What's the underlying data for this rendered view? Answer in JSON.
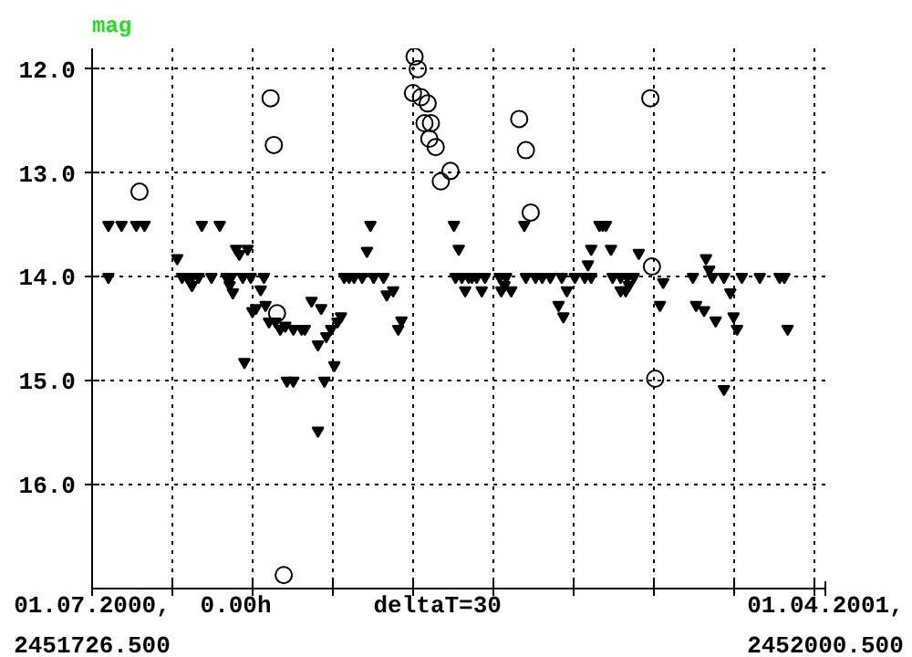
{
  "chart_data": {
    "type": "scatter",
    "ylabel": "mag",
    "annotations": [
      "01.07.2000,",
      "0.00h",
      "deltaT=30",
      "01.04.2001,"
    ],
    "xlim": [
      2451726.5,
      2452000.5
    ],
    "xticks": [
      {
        "value": 2451726.5,
        "label": "2451726.500"
      },
      {
        "value": 2451756.5,
        "label": null
      },
      {
        "value": 2451786.5,
        "label": null
      },
      {
        "value": 2451816.5,
        "label": null
      },
      {
        "value": 2451846.5,
        "label": null
      },
      {
        "value": 2451876.5,
        "label": null
      },
      {
        "value": 2451906.5,
        "label": null
      },
      {
        "value": 2451936.5,
        "label": null
      },
      {
        "value": 2451966.5,
        "label": null
      },
      {
        "value": 2451996.5,
        "label": null
      },
      {
        "value": 2452000.5,
        "label": "2452000.500"
      }
    ],
    "ylim": [
      17.0,
      11.8
    ],
    "yticks": [
      {
        "value": 12,
        "label": "12.0"
      },
      {
        "value": 13,
        "label": "13.0"
      },
      {
        "value": 14,
        "label": "14.0"
      },
      {
        "value": 15,
        "label": "15.0"
      },
      {
        "value": 16,
        "label": "16.0"
      }
    ],
    "grid": true,
    "series": [
      {
        "color": "#000000",
        "marker": "circle",
        "x": [
          2451744.2,
          2451793.2,
          2451794.4,
          2451795.6,
          2451798.1,
          2451846.4,
          2451847.0,
          2451848.2,
          2451849.4,
          2451850.7,
          2451851.9,
          2451852.5,
          2451853.1,
          2451854.9,
          2451856.8,
          2451860.4,
          2451886.1,
          2451888.6,
          2451890.4,
          2451935.1,
          2451935.7,
          2451936.9
        ],
        "values": [
          13.18,
          12.28,
          12.73,
          14.35,
          16.87,
          12.23,
          11.88,
          12.0,
          12.27,
          12.52,
          12.33,
          12.67,
          12.52,
          12.75,
          13.08,
          12.98,
          12.48,
          12.78,
          13.38,
          12.28,
          13.9,
          14.98
        ]
      },
      {
        "color": "#000000",
        "marker": "triangle",
        "x": [
          2451732.6,
          2451732.6,
          2451737.5,
          2451743.0,
          2451746.1,
          2451758.3,
          2451760.1,
          2451762.0,
          2451763.8,
          2451763.8,
          2451766.3,
          2451767.5,
          2451771.1,
          2451774.2,
          2451776.7,
          2451777.9,
          2451778.5,
          2451779.1,
          2451780.3,
          2451781.5,
          2451782.8,
          2451783.4,
          2451784.6,
          2451785.8,
          2451786.4,
          2451787.7,
          2451789.5,
          2451790.7,
          2451791.3,
          2451792.6,
          2451795.0,
          2451796.8,
          2451798.7,
          2451799.3,
          2451801.7,
          2451801.7,
          2451804.8,
          2451806.0,
          2451808.5,
          2451810.9,
          2451810.9,
          2451812.1,
          2451813.3,
          2451814.0,
          2451815.8,
          2451817.0,
          2451818.2,
          2451819.5,
          2451820.7,
          2451822.5,
          2451824.4,
          2451827.4,
          2451829.2,
          2451830.5,
          2451831.7,
          2451835.4,
          2451836.6,
          2451839.0,
          2451840.9,
          2451842.1,
          2451861.7,
          2451863.5,
          2451862.3,
          2451864.7,
          2451865.9,
          2451867.2,
          2451868.4,
          2451870.2,
          2451872.1,
          2451873.3,
          2451878.8,
          2451879.4,
          2451880.6,
          2451881.2,
          2451883.1,
          2451888.0,
          2451888.6,
          2451892.2,
          2451894.7,
          2451897.7,
          2451900.8,
          2451902.0,
          2451902.6,
          2451903.9,
          2451906.9,
          2451910.6,
          2451911.8,
          2451913.0,
          2451913.0,
          2451916.1,
          2451917.3,
          2451918.5,
          2451920.4,
          2451921.0,
          2451924.0,
          2451924.0,
          2451925.9,
          2451926.5,
          2451927.1,
          2451928.9,
          2451930.8,
          2451938.7,
          2451939.9,
          2451951.0,
          2451952.2,
          2451955.2,
          2451955.9,
          2451957.1,
          2451958.3,
          2451959.5,
          2451962.6,
          2451962.6,
          2451965.0,
          2451966.2,
          2451967.5,
          2451969.3,
          2451976.0,
          2451983.4,
          2451985.2,
          2451986.4
        ],
        "values": [
          13.5,
          14.0,
          13.5,
          13.5,
          13.5,
          13.82,
          14.0,
          14.0,
          14.0,
          14.08,
          14.0,
          13.5,
          14.0,
          13.5,
          14.0,
          14.08,
          14.0,
          14.15,
          13.73,
          13.78,
          14.0,
          14.82,
          13.73,
          14.0,
          14.33,
          14.3,
          14.12,
          14.0,
          14.27,
          14.43,
          14.43,
          14.5,
          14.47,
          15.0,
          15.0,
          14.5,
          14.5,
          14.5,
          14.23,
          14.65,
          15.48,
          14.3,
          15.0,
          14.57,
          14.5,
          14.85,
          14.43,
          14.38,
          14.0,
          14.0,
          14.0,
          14.0,
          13.75,
          13.5,
          14.0,
          14.0,
          14.17,
          14.13,
          14.5,
          14.42,
          13.5,
          13.73,
          14.0,
          14.0,
          14.13,
          14.0,
          14.0,
          14.0,
          14.13,
          14.0,
          14.0,
          14.13,
          14.08,
          14.0,
          14.13,
          13.5,
          14.0,
          14.0,
          14.0,
          14.0,
          14.27,
          14.0,
          14.38,
          14.13,
          14.0,
          14.0,
          13.88,
          13.73,
          14.0,
          13.5,
          13.5,
          13.5,
          13.73,
          14.0,
          14.0,
          14.13,
          14.13,
          14.0,
          14.08,
          14.0,
          13.77,
          14.27,
          14.05,
          14.0,
          14.27,
          14.32,
          13.82,
          13.93,
          14.0,
          14.42,
          14.0,
          15.08,
          14.15,
          14.38,
          14.5,
          14.0,
          14.0,
          14.0,
          14.0,
          14.5
        ]
      }
    ]
  }
}
